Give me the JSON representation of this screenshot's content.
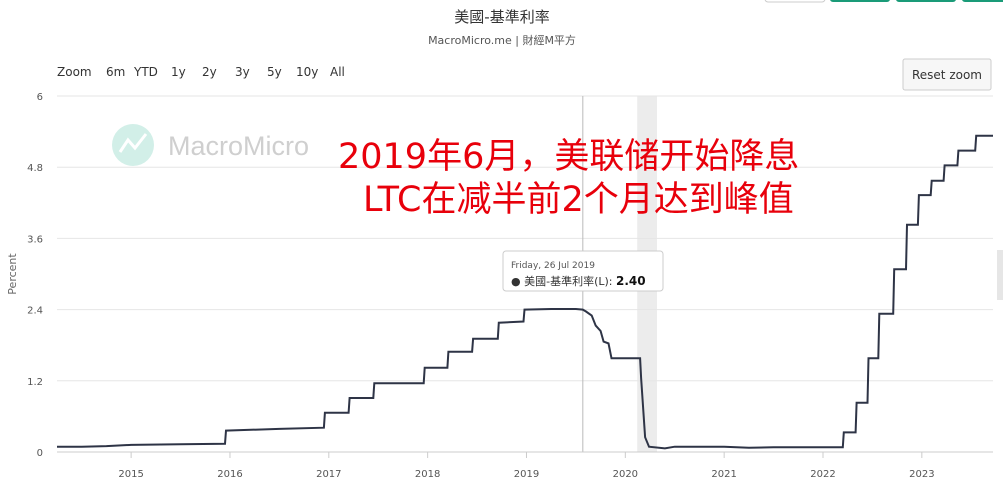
{
  "header": {
    "title": "美國-基準利率",
    "subtitle": "MacroMicro.me | 財經M平方"
  },
  "range_selector": {
    "label": "Zoom",
    "buttons": [
      "6m",
      "YTD",
      "1y",
      "2y",
      "3y",
      "5y",
      "10y",
      "All"
    ]
  },
  "reset_zoom_label": "Reset zoom",
  "watermark": {
    "text": "MacroMicro",
    "icon": "macromicro-logo-icon"
  },
  "annotation": {
    "line1": "2019年6月，美联储开始降息",
    "line2": "LTC在减半前2个月达到峰值",
    "color": "#e8000b"
  },
  "tooltip": {
    "date": "Friday, 26 Jul 2019",
    "series_label": "● 美國-基準利率(L): ",
    "value": "2.40",
    "date_value": 2019.57
  },
  "chart_data": {
    "type": "line",
    "ylabel": "Percent",
    "ylim": [
      0,
      6
    ],
    "xlim": [
      2014.25,
      2023.72
    ],
    "yticks": [
      "0",
      "1.2",
      "2.4",
      "3.6",
      "4.8",
      "6"
    ],
    "xticks": [
      "2015",
      "2016",
      "2017",
      "2018",
      "2019",
      "2020",
      "2021",
      "2022",
      "2023"
    ],
    "grid": true,
    "shaded_region": [
      2020.12,
      2020.32
    ],
    "line_color": "#2e3446",
    "series": [
      {
        "points": [
          [
            2014.25,
            0.09
          ],
          [
            2014.5,
            0.09
          ],
          [
            2014.75,
            0.1
          ],
          [
            2015.0,
            0.12
          ],
          [
            2015.5,
            0.13
          ],
          [
            2015.95,
            0.14
          ],
          [
            2015.96,
            0.36
          ],
          [
            2016.5,
            0.39
          ],
          [
            2016.95,
            0.41
          ],
          [
            2016.96,
            0.66
          ],
          [
            2017.2,
            0.66
          ],
          [
            2017.21,
            0.91
          ],
          [
            2017.45,
            0.91
          ],
          [
            2017.46,
            1.16
          ],
          [
            2017.96,
            1.16
          ],
          [
            2017.97,
            1.42
          ],
          [
            2018.2,
            1.42
          ],
          [
            2018.21,
            1.69
          ],
          [
            2018.45,
            1.69
          ],
          [
            2018.46,
            1.91
          ],
          [
            2018.71,
            1.91
          ],
          [
            2018.72,
            2.18
          ],
          [
            2018.97,
            2.2
          ],
          [
            2018.98,
            2.4
          ],
          [
            2019.25,
            2.41
          ],
          [
            2019.5,
            2.41
          ],
          [
            2019.57,
            2.4
          ],
          [
            2019.6,
            2.37
          ],
          [
            2019.66,
            2.3
          ],
          [
            2019.7,
            2.13
          ],
          [
            2019.75,
            2.04
          ],
          [
            2019.78,
            1.86
          ],
          [
            2019.83,
            1.83
          ],
          [
            2019.86,
            1.58
          ],
          [
            2020.15,
            1.58
          ],
          [
            2020.16,
            1.25
          ],
          [
            2020.2,
            0.25
          ],
          [
            2020.24,
            0.09
          ],
          [
            2020.4,
            0.06
          ],
          [
            2020.5,
            0.09
          ],
          [
            2020.75,
            0.09
          ],
          [
            2021.0,
            0.09
          ],
          [
            2021.25,
            0.07
          ],
          [
            2021.5,
            0.08
          ],
          [
            2021.75,
            0.08
          ],
          [
            2022.0,
            0.08
          ],
          [
            2022.2,
            0.08
          ],
          [
            2022.21,
            0.33
          ],
          [
            2022.33,
            0.33
          ],
          [
            2022.34,
            0.83
          ],
          [
            2022.45,
            0.83
          ],
          [
            2022.46,
            1.58
          ],
          [
            2022.56,
            1.58
          ],
          [
            2022.57,
            2.33
          ],
          [
            2022.71,
            2.33
          ],
          [
            2022.72,
            3.08
          ],
          [
            2022.84,
            3.08
          ],
          [
            2022.85,
            3.83
          ],
          [
            2022.96,
            3.83
          ],
          [
            2022.97,
            4.33
          ],
          [
            2023.09,
            4.33
          ],
          [
            2023.1,
            4.57
          ],
          [
            2023.22,
            4.57
          ],
          [
            2023.23,
            4.83
          ],
          [
            2023.36,
            4.83
          ],
          [
            2023.37,
            5.08
          ],
          [
            2023.54,
            5.08
          ],
          [
            2023.55,
            5.33
          ],
          [
            2023.72,
            5.33
          ]
        ]
      }
    ]
  }
}
